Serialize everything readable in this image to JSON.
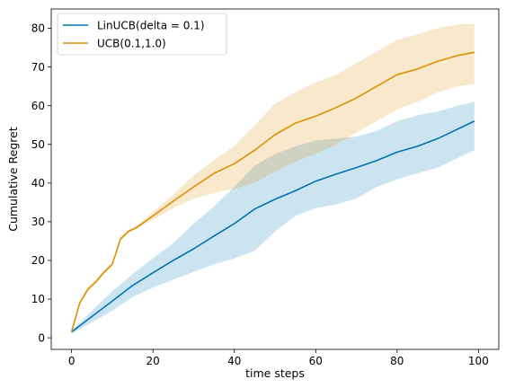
{
  "chart_data": {
    "type": "line",
    "title": "",
    "xlabel": "time steps",
    "ylabel": "Cumulative Regret",
    "xlim": [
      -5,
      105
    ],
    "ylim": [
      -3,
      85
    ],
    "xticks": [
      0,
      20,
      40,
      60,
      80,
      100
    ],
    "yticks": [
      0,
      10,
      20,
      30,
      40,
      50,
      60,
      70,
      80
    ],
    "grid": false,
    "legend_position": "top-left",
    "series": [
      {
        "name": "LinUCB(delta = 0.1)",
        "color": "#0173b2",
        "x": [
          0,
          5,
          10,
          15,
          20,
          25,
          30,
          35,
          40,
          45,
          50,
          55,
          60,
          65,
          70,
          75,
          80,
          85,
          90,
          95,
          99
        ],
        "y": [
          1.5,
          5.5,
          9.5,
          13.5,
          16.8,
          20,
          23,
          26.3,
          29.5,
          33.3,
          35.8,
          38,
          40.5,
          42.3,
          44,
          45.8,
          48,
          49.5,
          51.5,
          54,
          56
        ],
        "lower": [
          1.0,
          4.0,
          7.0,
          10.5,
          13.0,
          15.0,
          17.0,
          19.0,
          20.5,
          22.5,
          27.5,
          31.5,
          33.5,
          34.5,
          36.0,
          39.0,
          41.0,
          42.5,
          44.0,
          46.5,
          48.5
        ],
        "upper": [
          1.8,
          7.0,
          12.0,
          16.5,
          20.5,
          24.5,
          29.5,
          34.0,
          39.0,
          44.5,
          47.5,
          49.5,
          51.0,
          51.5,
          52.0,
          53.5,
          56.0,
          57.5,
          58.5,
          60.0,
          61.0
        ]
      },
      {
        "name": "UCB(0.1,1.0)",
        "color": "#de8f05",
        "x": [
          0,
          2,
          4,
          6,
          8,
          10,
          12,
          14,
          16,
          20,
          25,
          30,
          35,
          40,
          45,
          50,
          55,
          60,
          65,
          70,
          75,
          80,
          85,
          90,
          95,
          99
        ],
        "y": [
          1.5,
          9,
          12.5,
          14.5,
          17,
          19,
          25.5,
          27.5,
          28.5,
          31.5,
          35.3,
          39,
          42.5,
          45,
          48.5,
          52.5,
          55.5,
          57.3,
          59.5,
          62,
          65,
          68,
          69.5,
          71.5,
          73,
          73.8
        ],
        "lower": [
          1.2,
          8.5,
          12.0,
          14.0,
          16.5,
          18.5,
          25.0,
          27.2,
          28.2,
          30.5,
          33.5,
          36.0,
          37.5,
          38.5,
          40.0,
          43.0,
          45.5,
          47.5,
          50.0,
          53.0,
          56.0,
          59.0,
          61.0,
          63.5,
          65.0,
          65.5
        ],
        "upper": [
          1.8,
          9.5,
          13.0,
          15.0,
          17.5,
          19.5,
          26.0,
          28.0,
          29.0,
          32.5,
          37.0,
          42.0,
          46.0,
          49.5,
          55.0,
          60.5,
          63.5,
          66.0,
          68.0,
          71.0,
          74.0,
          77.0,
          78.5,
          80.0,
          81.0,
          81.2
        ]
      }
    ]
  }
}
